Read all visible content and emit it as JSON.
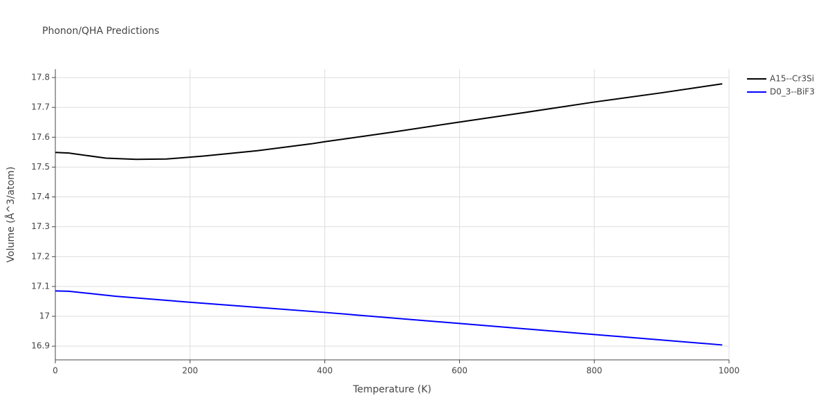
{
  "chart_data": {
    "type": "line",
    "title": "Phonon/QHA Predictions",
    "x_label": "Temperature (K)",
    "y_label": "Volume (Å^3/atom)",
    "series": [
      {
        "name": "A15--Cr3Si",
        "color": "#000000",
        "x": [
          0,
          20,
          75,
          120,
          165,
          220,
          300,
          380,
          400,
          500,
          600,
          700,
          800,
          900,
          990
        ],
        "values": [
          17.549,
          17.547,
          17.53,
          17.526,
          17.527,
          17.537,
          17.555,
          17.578,
          17.585,
          17.617,
          17.651,
          17.684,
          17.718,
          17.749,
          17.779
        ]
      },
      {
        "name": "D0_3--BiF3",
        "color": "#0000ff",
        "x": [
          0,
          20,
          90,
          200,
          400,
          600,
          800,
          990
        ],
        "values": [
          17.085,
          17.084,
          17.067,
          17.047,
          17.013,
          16.976,
          16.939,
          16.904
        ]
      }
    ],
    "xlim": [
      0,
      1000
    ],
    "xticks": [
      0,
      200,
      400,
      600,
      800,
      1000
    ],
    "ylim": [
      16.854,
      17.828
    ],
    "yticks": [
      16.9,
      17,
      17.1,
      17.2,
      17.3,
      17.4,
      17.5,
      17.6,
      17.7,
      17.8
    ],
    "grid": true,
    "legend": "right"
  }
}
